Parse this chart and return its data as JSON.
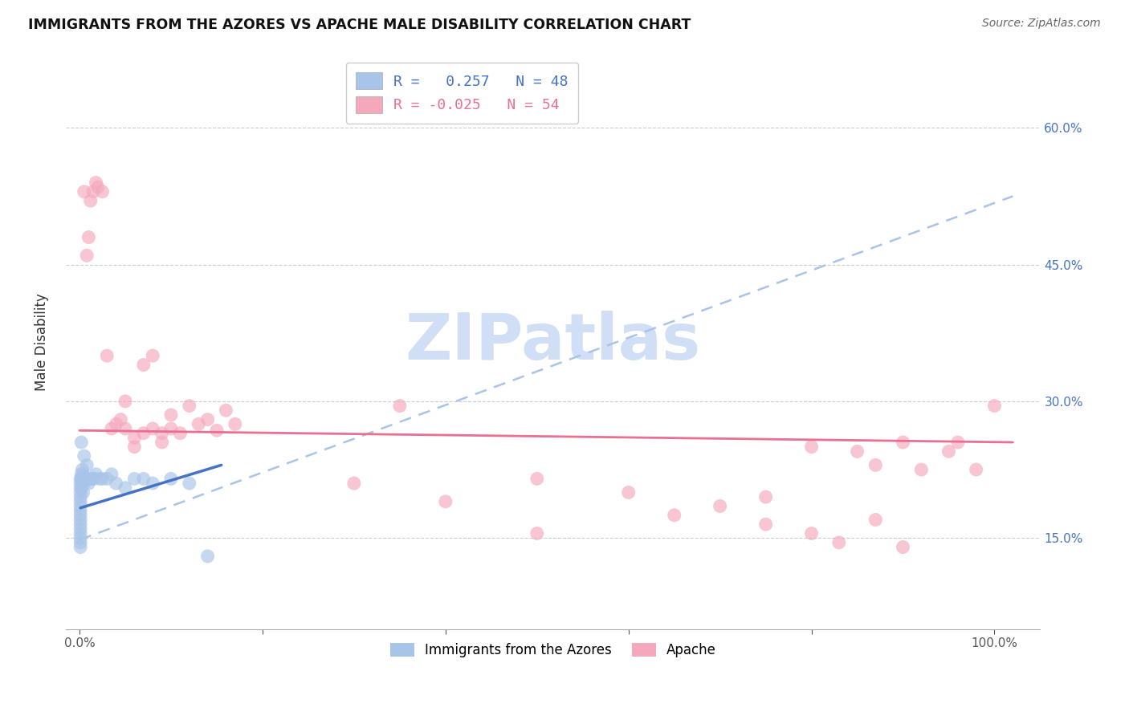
{
  "title": "IMMIGRANTS FROM THE AZORES VS APACHE MALE DISABILITY CORRELATION CHART",
  "source": "Source: ZipAtlas.com",
  "ylabel": "Male Disability",
  "legend1_label": "Immigrants from the Azores",
  "legend2_label": "Apache",
  "R_blue": 0.257,
  "N_blue": 48,
  "R_pink": -0.025,
  "N_pink": 54,
  "blue_color": "#a8c4e8",
  "pink_color": "#f5a8bc",
  "blue_line_color": "#4472c4",
  "pink_line_color": "#e87090",
  "watermark_color": "#d0dff5",
  "blue_scatter_x": [
    0.001,
    0.001,
    0.001,
    0.001,
    0.001,
    0.001,
    0.001,
    0.001,
    0.001,
    0.001,
    0.001,
    0.001,
    0.001,
    0.001,
    0.001,
    0.001,
    0.002,
    0.002,
    0.002,
    0.003,
    0.003,
    0.004,
    0.004,
    0.005,
    0.006,
    0.007,
    0.008,
    0.01,
    0.012,
    0.015,
    0.018,
    0.022,
    0.025,
    0.03,
    0.035,
    0.04,
    0.05,
    0.06,
    0.07,
    0.08,
    0.1,
    0.12,
    0.14,
    0.002,
    0.003,
    0.005,
    0.008,
    0.015
  ],
  "blue_scatter_y": [
    0.2,
    0.21,
    0.215,
    0.205,
    0.195,
    0.185,
    0.18,
    0.175,
    0.19,
    0.17,
    0.165,
    0.16,
    0.155,
    0.15,
    0.145,
    0.14,
    0.205,
    0.215,
    0.22,
    0.21,
    0.215,
    0.2,
    0.22,
    0.21,
    0.215,
    0.215,
    0.215,
    0.21,
    0.215,
    0.215,
    0.22,
    0.215,
    0.215,
    0.215,
    0.22,
    0.21,
    0.205,
    0.215,
    0.215,
    0.21,
    0.215,
    0.21,
    0.13,
    0.255,
    0.225,
    0.24,
    0.23,
    0.215
  ],
  "pink_scatter_x": [
    0.005,
    0.008,
    0.01,
    0.012,
    0.015,
    0.018,
    0.02,
    0.025,
    0.03,
    0.035,
    0.04,
    0.045,
    0.05,
    0.06,
    0.07,
    0.08,
    0.09,
    0.1,
    0.12,
    0.14,
    0.16,
    0.08,
    0.09,
    0.1,
    0.11,
    0.13,
    0.15,
    0.17,
    0.06,
    0.07,
    0.05,
    0.35,
    0.5,
    0.65,
    0.75,
    0.8,
    0.85,
    0.87,
    0.9,
    0.92,
    0.95,
    0.96,
    0.98,
    1.0,
    0.75,
    0.8,
    0.83,
    0.87,
    0.9,
    0.7,
    0.6,
    0.5,
    0.4,
    0.3
  ],
  "pink_scatter_y": [
    0.53,
    0.46,
    0.48,
    0.52,
    0.53,
    0.54,
    0.535,
    0.53,
    0.35,
    0.27,
    0.275,
    0.28,
    0.27,
    0.26,
    0.34,
    0.35,
    0.255,
    0.27,
    0.295,
    0.28,
    0.29,
    0.27,
    0.265,
    0.285,
    0.265,
    0.275,
    0.268,
    0.275,
    0.25,
    0.265,
    0.3,
    0.295,
    0.155,
    0.175,
    0.165,
    0.25,
    0.245,
    0.23,
    0.255,
    0.225,
    0.245,
    0.255,
    0.225,
    0.295,
    0.195,
    0.155,
    0.145,
    0.17,
    0.14,
    0.185,
    0.2,
    0.215,
    0.19,
    0.21
  ]
}
